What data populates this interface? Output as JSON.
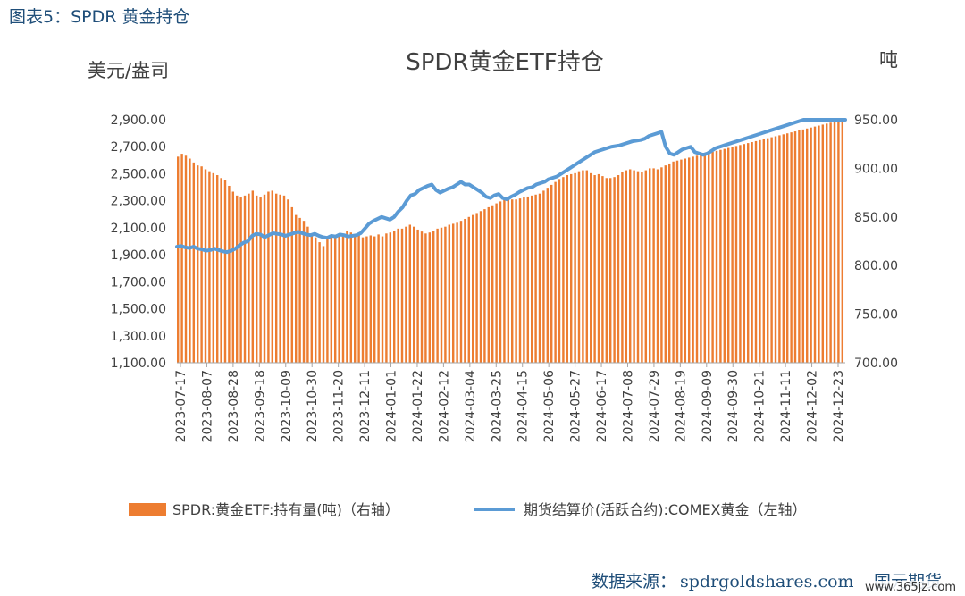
{
  "figure_label": "图表5：SPDR 黄金持仓",
  "source_label": "数据来源：",
  "source_value": "spdrgoldshares.com",
  "logo_text": "国元期货",
  "watermark": "www.365jz.com",
  "colors": {
    "bars": "#ed7d31",
    "line": "#5b9bd5",
    "header": "#1f4e79"
  },
  "chart_data": {
    "type": "bar+line",
    "title": "SPDR黄金ETF持仓",
    "left_axis_unit": "美元/盎司",
    "right_axis_unit": "吨",
    "left_axis": {
      "min": 1100,
      "max": 2900,
      "ticks": [
        "2,900.00",
        "2,700.00",
        "2,500.00",
        "2,300.00",
        "2,100.00",
        "1,900.00",
        "1,700.00",
        "1,500.00",
        "1,300.00",
        "1,100.00"
      ]
    },
    "right_axis": {
      "min": 700,
      "max": 950,
      "ticks": [
        "950.00",
        "900.00",
        "850.00",
        "800.00",
        "750.00",
        "700.00"
      ]
    },
    "x_ticks": [
      "2023-07-17",
      "2023-08-07",
      "2023-08-28",
      "2023-09-18",
      "2023-10-09",
      "2023-10-30",
      "2023-11-20",
      "2023-12-11",
      "2024-01-01",
      "2024-01-22",
      "2024-02-12",
      "2024-03-04",
      "2024-03-25",
      "2024-04-15",
      "2024-05-06",
      "2024-05-27",
      "2024-06-17",
      "2024-07-08",
      "2024-07-29",
      "2024-08-19",
      "2024-09-09",
      "2024-09-30",
      "2024-10-21",
      "2024-11-11",
      "2024-12-02",
      "2024-12-23"
    ],
    "grid": false,
    "legend_position": "bottom",
    "series": [
      {
        "name": "SPDR:黄金ETF:持有量(吨)（右轴）",
        "type": "bar",
        "axis": "right",
        "sample_step_days": 7,
        "values": [
          912,
          915,
          913,
          910,
          906,
          903,
          902,
          899,
          897,
          895,
          893,
          890,
          888,
          882,
          876,
          872,
          870,
          872,
          874,
          877,
          872,
          870,
          873,
          876,
          877,
          874,
          873,
          872,
          868,
          860,
          852,
          849,
          846,
          840,
          832,
          829,
          824,
          820,
          829,
          830,
          830,
          832,
          831,
          836,
          834,
          832,
          833,
          829,
          830,
          831,
          830,
          832,
          830,
          833,
          834,
          836,
          838,
          838,
          840,
          842,
          840,
          837,
          835,
          833,
          834,
          836,
          838,
          839,
          840,
          842,
          843,
          844,
          846,
          848,
          850,
          852,
          854,
          856,
          858,
          860,
          862,
          864,
          866,
          868,
          868,
          868,
          868,
          869,
          870,
          871,
          872,
          873,
          874,
          877,
          880,
          883,
          886,
          889,
          891,
          893,
          894,
          895,
          897,
          898,
          898,
          895,
          893,
          894,
          892,
          890,
          890,
          891,
          893,
          896,
          898,
          899,
          898,
          897,
          896,
          898,
          900,
          900,
          899,
          901,
          903,
          905,
          907,
          908,
          909,
          910,
          911,
          912,
          913,
          914,
          915,
          916,
          917,
          918,
          919,
          920,
          921,
          922,
          923,
          924,
          925,
          926,
          927,
          928,
          929,
          930,
          931,
          932,
          933,
          934,
          935,
          936,
          937,
          938,
          939,
          940,
          941,
          942,
          943,
          944,
          945,
          946,
          947,
          948,
          949,
          950
        ]
      },
      {
        "name": "期货结算价(活跃合约):COMEX黄金（左轴）",
        "type": "line",
        "axis": "left",
        "sample_step_days": 7,
        "values": [
          1960,
          1965,
          1955,
          1950,
          1960,
          1945,
          1940,
          1930,
          1935,
          1945,
          1935,
          1925,
          1920,
          1930,
          1945,
          1970,
          1990,
          2000,
          2040,
          2055,
          2050,
          2030,
          2045,
          2060,
          2055,
          2050,
          2040,
          2050,
          2060,
          2070,
          2060,
          2050,
          2045,
          2055,
          2040,
          2030,
          2025,
          2040,
          2035,
          2050,
          2045,
          2035,
          2040,
          2045,
          2060,
          2095,
          2130,
          2150,
          2165,
          2180,
          2170,
          2160,
          2180,
          2220,
          2250,
          2300,
          2340,
          2350,
          2380,
          2395,
          2410,
          2420,
          2380,
          2360,
          2375,
          2390,
          2400,
          2420,
          2440,
          2420,
          2420,
          2400,
          2380,
          2360,
          2330,
          2320,
          2340,
          2350,
          2320,
          2310,
          2330,
          2345,
          2365,
          2380,
          2395,
          2400,
          2420,
          2430,
          2440,
          2460,
          2470,
          2480,
          2500,
          2520,
          2540,
          2560,
          2580,
          2600,
          2620,
          2640,
          2660,
          2670,
          2680,
          2690,
          2700,
          2705,
          2710,
          2720,
          2730,
          2740,
          2745,
          2750,
          2760,
          2780,
          2790,
          2800,
          2810,
          2700,
          2650,
          2640,
          2660,
          2680,
          2690,
          2700,
          2660,
          2650,
          2640,
          2650,
          2670,
          2690,
          2700,
          2710,
          2720,
          2730,
          2740,
          2750,
          2760,
          2770,
          2780,
          2790,
          2800,
          2810,
          2820,
          2830,
          2840,
          2850,
          2860,
          2870,
          2880,
          2890,
          2900,
          2900,
          2900,
          2900,
          2900,
          2900,
          2900,
          2900,
          2900,
          2900,
          2900
        ]
      }
    ]
  }
}
